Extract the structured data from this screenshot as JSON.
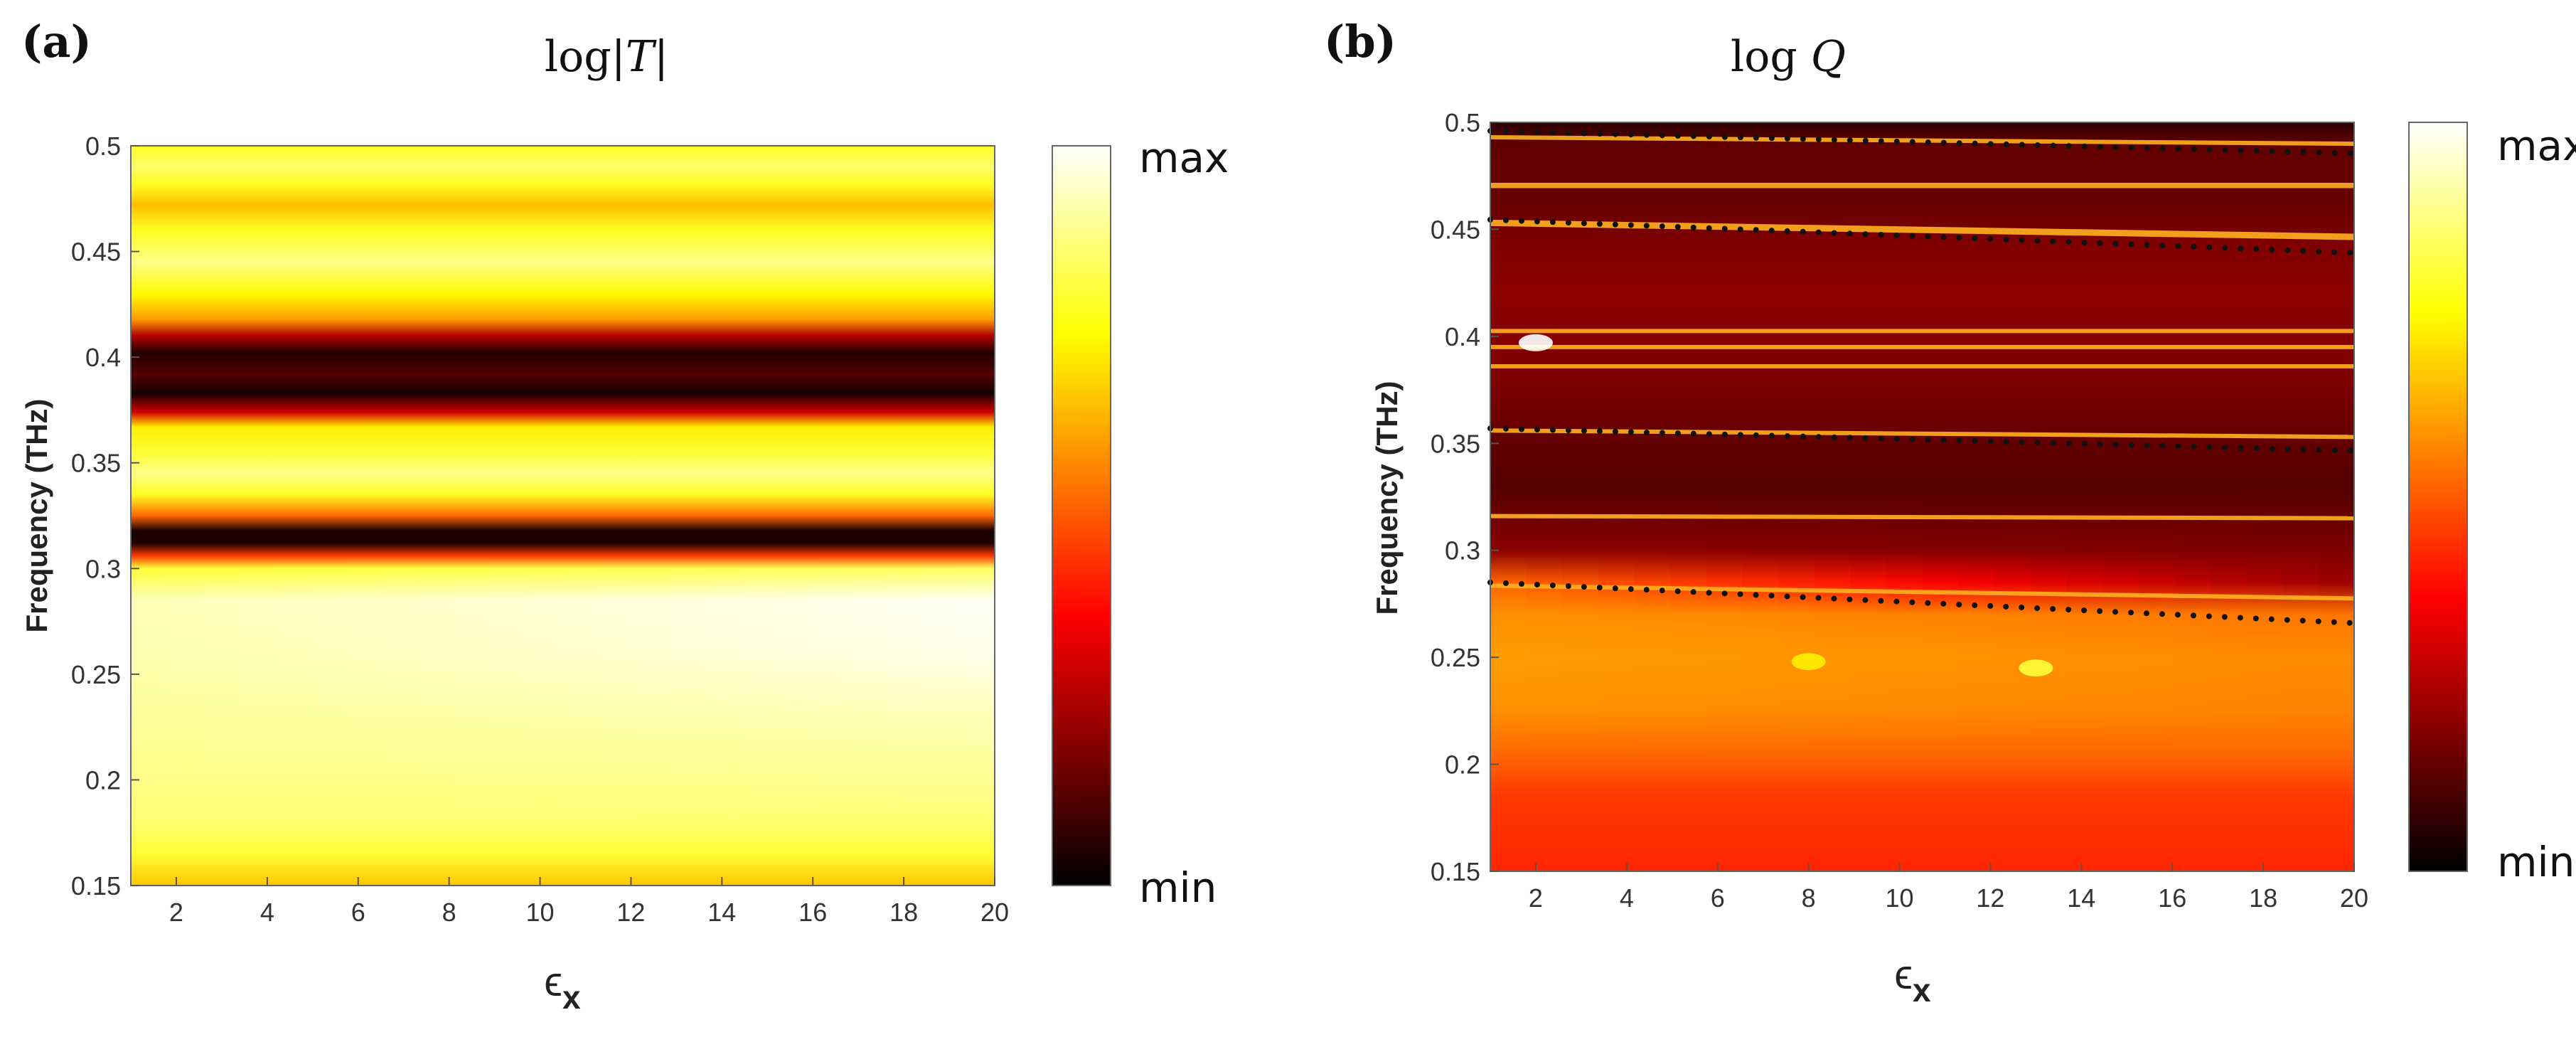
{
  "chart_data": [
    {
      "type": "heatmap",
      "panel_label": "(a)",
      "title": "log|T|",
      "title_parts": [
        "log|",
        "T",
        "|"
      ],
      "xlabel": "ϵ",
      "xlabel_sub": "x",
      "ylabel": "Frequency (THz)",
      "xlim": [
        1,
        20
      ],
      "ylim": [
        0.15,
        0.5
      ],
      "xticks": [
        2,
        4,
        6,
        8,
        10,
        12,
        14,
        16,
        18,
        20
      ],
      "xtick_labels": [
        "2",
        "4",
        "6",
        "8",
        "10",
        "12",
        "14",
        "16",
        "18",
        "20"
      ],
      "yticks": [
        0.15,
        0.2,
        0.25,
        0.3,
        0.35,
        0.4,
        0.45,
        0.5
      ],
      "ytick_labels": [
        "0.15",
        "0.2",
        "0.25",
        "0.3",
        "0.35",
        "0.4",
        "0.45",
        "0.5"
      ],
      "colorbar": {
        "max_label": "max",
        "min_label": "min",
        "colormap": "hot"
      },
      "profile": [
        [
          0.15,
          0.66,
          0.66
        ],
        [
          0.165,
          0.8,
          0.8
        ],
        [
          0.18,
          0.86,
          0.86
        ],
        [
          0.2,
          0.88,
          0.89
        ],
        [
          0.23,
          0.9,
          0.93
        ],
        [
          0.26,
          0.92,
          0.98
        ],
        [
          0.285,
          0.93,
          0.99
        ],
        [
          0.3,
          0.8,
          0.84
        ],
        [
          0.306,
          0.45,
          0.45
        ],
        [
          0.312,
          0.04,
          0.04
        ],
        [
          0.318,
          0.04,
          0.04
        ],
        [
          0.325,
          0.52,
          0.52
        ],
        [
          0.335,
          0.78,
          0.78
        ],
        [
          0.345,
          0.88,
          0.88
        ],
        [
          0.355,
          0.8,
          0.8
        ],
        [
          0.367,
          0.72,
          0.72
        ],
        [
          0.374,
          0.3,
          0.3
        ],
        [
          0.383,
          0.03,
          0.03
        ],
        [
          0.392,
          0.12,
          0.12
        ],
        [
          0.402,
          0.05,
          0.05
        ],
        [
          0.41,
          0.25,
          0.25
        ],
        [
          0.418,
          0.6,
          0.6
        ],
        [
          0.43,
          0.74,
          0.74
        ],
        [
          0.445,
          0.88,
          0.88
        ],
        [
          0.46,
          0.78,
          0.78
        ],
        [
          0.472,
          0.65,
          0.65
        ],
        [
          0.482,
          0.78,
          0.78
        ],
        [
          0.49,
          0.85,
          0.85
        ],
        [
          0.5,
          0.78,
          0.78
        ]
      ]
    },
    {
      "type": "heatmap",
      "panel_label": "(b)",
      "title": "log Q",
      "title_parts": [
        "log ",
        "Q"
      ],
      "xlabel": "ϵ",
      "xlabel_sub": "x",
      "ylabel": "Frequency (THz)",
      "xlim": [
        1,
        20
      ],
      "ylim": [
        0.15,
        0.5
      ],
      "xticks": [
        2,
        4,
        6,
        8,
        10,
        12,
        14,
        16,
        18,
        20
      ],
      "xtick_labels": [
        "2",
        "4",
        "6",
        "8",
        "10",
        "12",
        "14",
        "16",
        "18",
        "20"
      ],
      "yticks": [
        0.15,
        0.2,
        0.25,
        0.3,
        0.35,
        0.4,
        0.45,
        0.5
      ],
      "ytick_labels": [
        "0.15",
        "0.2",
        "0.25",
        "0.3",
        "0.35",
        "0.4",
        "0.45",
        "0.5"
      ],
      "colorbar": {
        "max_label": "max",
        "min_label": "min",
        "colormap": "hot"
      },
      "profile": [
        [
          0.15,
          0.42,
          0.42
        ],
        [
          0.185,
          0.45,
          0.45
        ],
        [
          0.205,
          0.52,
          0.52
        ],
        [
          0.225,
          0.58,
          0.56
        ],
        [
          0.25,
          0.6,
          0.57
        ],
        [
          0.27,
          0.58,
          0.54
        ],
        [
          0.285,
          0.52,
          0.22
        ],
        [
          0.3,
          0.2,
          0.18
        ],
        [
          0.33,
          0.12,
          0.12
        ],
        [
          0.35,
          0.14,
          0.14
        ],
        [
          0.38,
          0.18,
          0.18
        ],
        [
          0.42,
          0.2,
          0.2
        ],
        [
          0.445,
          0.18,
          0.18
        ],
        [
          0.46,
          0.15,
          0.15
        ],
        [
          0.49,
          0.14,
          0.14
        ],
        [
          0.5,
          0.06,
          0.06
        ]
      ],
      "bright_lines": [
        {
          "f_left": 0.493,
          "f_right": 0.49,
          "width": 0.002
        },
        {
          "f_left": 0.4705,
          "f_right": 0.4705,
          "width": 0.0025
        },
        {
          "f_left": 0.453,
          "f_right": 0.4465,
          "width": 0.003
        },
        {
          "f_left": 0.4025,
          "f_right": 0.4025,
          "width": 0.002
        },
        {
          "f_left": 0.395,
          "f_right": 0.395,
          "width": 0.002
        },
        {
          "f_left": 0.386,
          "f_right": 0.386,
          "width": 0.002
        },
        {
          "f_left": 0.356,
          "f_right": 0.353,
          "width": 0.002
        },
        {
          "f_left": 0.316,
          "f_right": 0.315,
          "width": 0.002
        },
        {
          "f_left": 0.2835,
          "f_right": 0.2775,
          "width": 0.002
        }
      ],
      "dotted_lines": [
        {
          "f_left": 0.496,
          "f_right": 0.4855
        },
        {
          "f_left": 0.4545,
          "f_right": 0.439
        },
        {
          "f_left": 0.357,
          "f_right": 0.3465
        },
        {
          "f_left": 0.285,
          "f_right": 0.266
        }
      ],
      "hotspots": [
        {
          "x": 2.0,
          "f": 0.397,
          "value": 1.0
        },
        {
          "x": 8.0,
          "f": 0.248,
          "value": 0.72
        },
        {
          "x": 13.0,
          "f": 0.245,
          "value": 0.8
        }
      ]
    }
  ]
}
